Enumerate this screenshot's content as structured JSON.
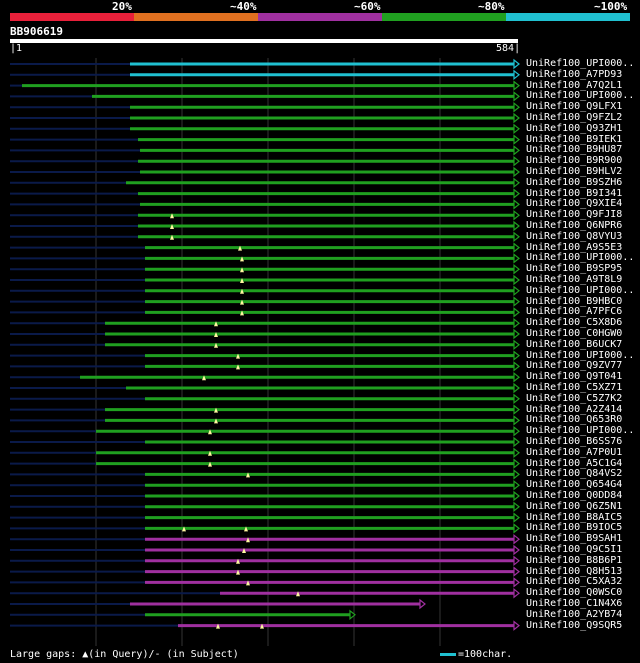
{
  "legend": {
    "labels": [
      "20%",
      "~40%",
      "~60%",
      "~80%",
      "~100%"
    ],
    "colors": [
      "#e8203a",
      "#e07020",
      "#a030a0",
      "#20a020",
      "#20c0d0"
    ]
  },
  "query": {
    "id": "BB906619",
    "start": "1",
    "end": "584"
  },
  "hits": [
    {
      "name": "UniRef100_UPI000..",
      "color": "#20c0d0",
      "start": 130,
      "gaps": []
    },
    {
      "name": "UniRef100_A7PD93",
      "color": "#20c0d0",
      "start": 130,
      "gaps": []
    },
    {
      "name": "UniRef100_A7Q2L1",
      "color": "#20a020",
      "start": 22,
      "gaps": []
    },
    {
      "name": "UniRef100_UPI000..",
      "color": "#20a020",
      "start": 92,
      "gaps": []
    },
    {
      "name": "UniRef100_Q9LFX1",
      "color": "#20a020",
      "start": 130,
      "gaps": []
    },
    {
      "name": "UniRef100_Q9FZL2",
      "color": "#20a020",
      "start": 130,
      "gaps": []
    },
    {
      "name": "UniRef100_Q93ZH1",
      "color": "#20a020",
      "start": 130,
      "gaps": []
    },
    {
      "name": "UniRef100_B9IEK1",
      "color": "#20a020",
      "start": 138,
      "gaps": []
    },
    {
      "name": "UniRef100_B9HU87",
      "color": "#20a020",
      "start": 140,
      "gaps": []
    },
    {
      "name": "UniRef100_B9R900",
      "color": "#20a020",
      "start": 138,
      "gaps": []
    },
    {
      "name": "UniRef100_B9HLV2",
      "color": "#20a020",
      "start": 140,
      "gaps": []
    },
    {
      "name": "UniRef100_B9SZH6",
      "color": "#20a020",
      "start": 126,
      "gaps": []
    },
    {
      "name": "UniRef100_B9I341",
      "color": "#20a020",
      "start": 138,
      "gaps": []
    },
    {
      "name": "UniRef100_Q9XIE4",
      "color": "#20a020",
      "start": 140,
      "gaps": []
    },
    {
      "name": "UniRef100_Q9FJI8",
      "color": "#20a020",
      "start": 138,
      "gaps": [
        172
      ]
    },
    {
      "name": "UniRef100_Q6NPR6",
      "color": "#20a020",
      "start": 138,
      "gaps": [
        172
      ]
    },
    {
      "name": "UniRef100_Q8VYU3",
      "color": "#20a020",
      "start": 138,
      "gaps": [
        172
      ]
    },
    {
      "name": "UniRef100_A9S5E3",
      "color": "#20a020",
      "start": 145,
      "gaps": [
        240
      ]
    },
    {
      "name": "UniRef100_UPI000..",
      "color": "#20a020",
      "start": 145,
      "gaps": [
        242
      ]
    },
    {
      "name": "UniRef100_B9SP95",
      "color": "#20a020",
      "start": 145,
      "gaps": [
        242
      ]
    },
    {
      "name": "UniRef100_A9T8L9",
      "color": "#20a020",
      "start": 145,
      "gaps": [
        242
      ]
    },
    {
      "name": "UniRef100_UPI000..",
      "color": "#20a020",
      "start": 145,
      "gaps": [
        242
      ]
    },
    {
      "name": "UniRef100_B9HBC0",
      "color": "#20a020",
      "start": 145,
      "gaps": [
        242
      ]
    },
    {
      "name": "UniRef100_A7PFC6",
      "color": "#20a020",
      "start": 145,
      "gaps": [
        242
      ]
    },
    {
      "name": "UniRef100_C5X8D6",
      "color": "#20a020",
      "start": 105,
      "gaps": [
        216
      ]
    },
    {
      "name": "UniRef100_C0HGW0",
      "color": "#20a020",
      "start": 105,
      "gaps": [
        216
      ]
    },
    {
      "name": "UniRef100_B6UCK7",
      "color": "#20a020",
      "start": 105,
      "gaps": [
        216
      ]
    },
    {
      "name": "UniRef100_UPI000..",
      "color": "#20a020",
      "start": 145,
      "gaps": [
        238
      ]
    },
    {
      "name": "UniRef100_Q9ZV77",
      "color": "#20a020",
      "start": 145,
      "gaps": [
        238
      ]
    },
    {
      "name": "UniRef100_Q9T041",
      "color": "#20a020",
      "start": 80,
      "gaps": [
        204
      ]
    },
    {
      "name": "UniRef100_C5XZ71",
      "color": "#20a020",
      "start": 126,
      "gaps": []
    },
    {
      "name": "UniRef100_C5Z7K2",
      "color": "#20a020",
      "start": 145,
      "gaps": []
    },
    {
      "name": "UniRef100_A2Z414",
      "color": "#20a020",
      "start": 105,
      "gaps": [
        216
      ]
    },
    {
      "name": "UniRef100_Q653R0",
      "color": "#20a020",
      "start": 105,
      "gaps": [
        216
      ]
    },
    {
      "name": "UniRef100_UPI000..",
      "color": "#20a020",
      "start": 96,
      "gaps": [
        210
      ]
    },
    {
      "name": "UniRef100_B6SS76",
      "color": "#20a020",
      "start": 145,
      "gaps": []
    },
    {
      "name": "UniRef100_A7P0U1",
      "color": "#20a020",
      "start": 96,
      "gaps": [
        210
      ]
    },
    {
      "name": "UniRef100_A5C1G4",
      "color": "#20a020",
      "start": 96,
      "gaps": [
        210
      ]
    },
    {
      "name": "UniRef100_Q84VS2",
      "color": "#20a020",
      "start": 145,
      "gaps": [
        248
      ]
    },
    {
      "name": "UniRef100_Q654G4",
      "color": "#20a020",
      "start": 145,
      "gaps": []
    },
    {
      "name": "UniRef100_Q0DD84",
      "color": "#20a020",
      "start": 145,
      "gaps": []
    },
    {
      "name": "UniRef100_Q6Z5N1",
      "color": "#20a020",
      "start": 145,
      "gaps": []
    },
    {
      "name": "UniRef100_B8AIC5",
      "color": "#20a020",
      "start": 145,
      "gaps": []
    },
    {
      "name": "UniRef100_B9IOC5",
      "color": "#20a020",
      "start": 145,
      "gaps": [
        184,
        246
      ]
    },
    {
      "name": "UniRef100_B9SAH1",
      "color": "#a030a0",
      "start": 145,
      "gaps": [
        248
      ]
    },
    {
      "name": "UniRef100_Q9C5I1",
      "color": "#a030a0",
      "start": 145,
      "gaps": [
        244
      ]
    },
    {
      "name": "UniRef100_B8B6P1",
      "color": "#a030a0",
      "start": 145,
      "gaps": [
        238
      ]
    },
    {
      "name": "UniRef100_Q8H513",
      "color": "#a030a0",
      "start": 145,
      "gaps": [
        238
      ]
    },
    {
      "name": "UniRef100_C5XA32",
      "color": "#a030a0",
      "start": 145,
      "gaps": [
        248
      ]
    },
    {
      "name": "UniRef100_Q0WSC0",
      "color": "#a030a0",
      "start": 220,
      "gaps": [
        298
      ]
    },
    {
      "name": "UniRef100_C1N4X6",
      "color": "#a030a0",
      "start": 130,
      "end": 420,
      "gaps": []
    },
    {
      "name": "UniRef100_A2YB74",
      "color": "#20a020",
      "start": 145,
      "end": 350,
      "gaps": []
    },
    {
      "name": "UniRef100_Q9SQR5",
      "color": "#a030a0",
      "start": 178,
      "gaps": [
        218,
        262
      ]
    }
  ],
  "footer": {
    "gaps_label": "Large gaps: ▲(in Query)/- (in Subject)",
    "scale_label": "=100char."
  }
}
